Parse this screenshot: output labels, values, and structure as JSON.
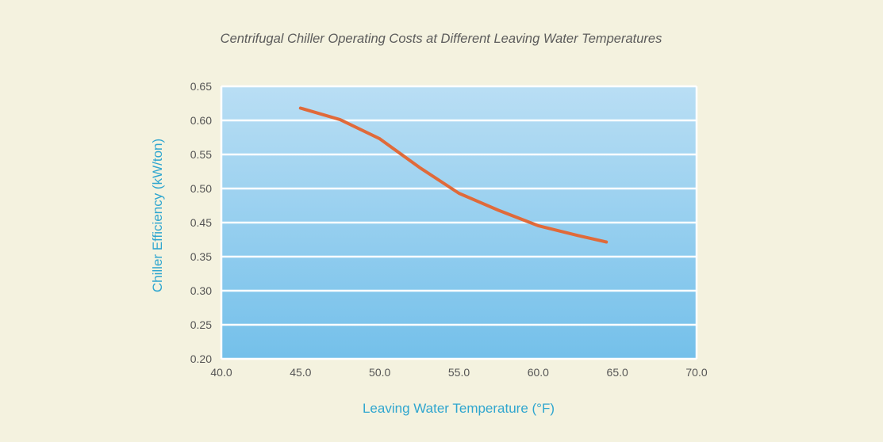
{
  "chart_data": {
    "type": "line",
    "title": "Centrifugal Chiller Operating Costs at Different Leaving Water Temperatures",
    "xlabel": "Leaving Water Temperature (°F)",
    "ylabel": "Chiller Efficiency (kW/ton)",
    "x_ticks": [
      "40.0",
      "45.0",
      "50.0",
      "55.0",
      "60.0",
      "65.0",
      "70.0"
    ],
    "y_ticks": [
      "0.20",
      "0.25",
      "0.30",
      "0.35",
      "0.45",
      "0.50",
      "0.55",
      "0.60",
      "0.65"
    ],
    "xlim": [
      40,
      70
    ],
    "grid": "horizontal",
    "legend": "none",
    "series": [
      {
        "x": [
          45.0,
          47.5,
          50.0,
          52.5,
          55.0,
          57.5,
          60.0,
          62.5,
          64.3
        ],
        "y": [
          0.618,
          0.601,
          0.573,
          0.531,
          0.493,
          0.468,
          0.441,
          0.412,
          0.393
        ]
      }
    ]
  },
  "colors": {
    "background": "#f4f2df",
    "plot_top": "#b9def4",
    "plot_bottom": "#74c0ea",
    "line": "#e06a3a",
    "grid": "#ffffff",
    "axis_title": "#2fa6cf",
    "tick_label": "#555555",
    "title": "#5b5b5b"
  }
}
